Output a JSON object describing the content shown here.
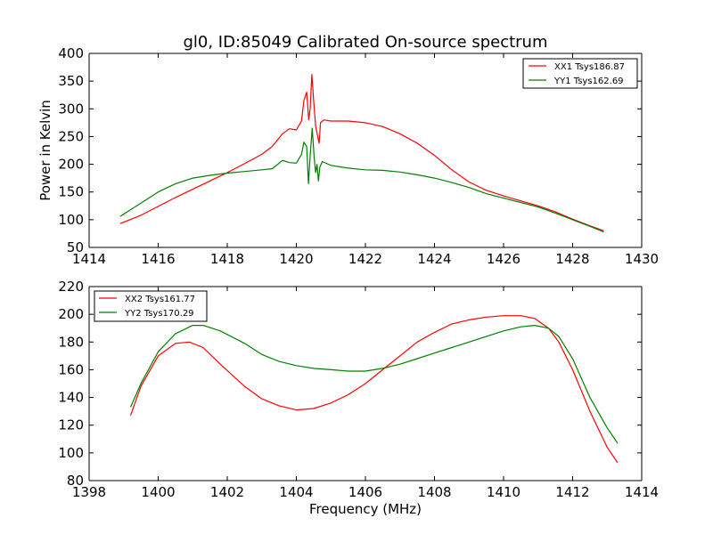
{
  "title": "gl0, ID:85049 Calibrated On-source spectrum",
  "chart_data": [
    {
      "type": "line",
      "title": "gl0, ID:85049 Calibrated On-source spectrum",
      "xlabel": "",
      "ylabel": "Power in Kelvin",
      "xlim": [
        1414,
        1430
      ],
      "ylim": [
        50,
        400
      ],
      "xticks": [
        "1414",
        "1416",
        "1418",
        "1420",
        "1422",
        "1424",
        "1426",
        "1428",
        "1430"
      ],
      "yticks": [
        "50",
        "100",
        "150",
        "200",
        "250",
        "300",
        "350",
        "400"
      ],
      "grid": false,
      "legend_position": "top-right",
      "series": [
        {
          "name": "XX1 Tsys186.87",
          "color": "#ff0000",
          "x": [
            1414.9,
            1415.5,
            1416,
            1416.5,
            1417,
            1417.5,
            1418,
            1418.5,
            1419,
            1419.3,
            1419.6,
            1419.8,
            1420.0,
            1420.15,
            1420.22,
            1420.3,
            1420.36,
            1420.4,
            1420.45,
            1420.5,
            1420.56,
            1420.62,
            1420.66,
            1420.7,
            1420.8,
            1421,
            1421.5,
            1422,
            1422.5,
            1423,
            1423.5,
            1424,
            1424.5,
            1425,
            1425.5,
            1426,
            1426.5,
            1427,
            1427.5,
            1428,
            1428.5,
            1428.9
          ],
          "y": [
            93,
            108,
            124,
            140,
            155,
            170,
            185,
            201,
            218,
            232,
            255,
            264,
            262,
            278,
            315,
            330,
            280,
            300,
            362,
            315,
            268,
            250,
            238,
            275,
            280,
            278,
            278,
            275,
            268,
            255,
            238,
            216,
            190,
            168,
            153,
            143,
            134,
            125,
            114,
            101,
            89,
            80
          ]
        },
        {
          "name": "YY1 Tsys162.69",
          "color": "#008000",
          "x": [
            1414.9,
            1415.5,
            1416,
            1416.5,
            1417,
            1417.5,
            1418,
            1418.5,
            1419,
            1419.3,
            1419.6,
            1419.8,
            1420.0,
            1420.15,
            1420.22,
            1420.3,
            1420.35,
            1420.4,
            1420.46,
            1420.52,
            1420.56,
            1420.6,
            1420.64,
            1420.68,
            1420.75,
            1421,
            1421.5,
            1422,
            1422.5,
            1423,
            1423.5,
            1424,
            1424.5,
            1425,
            1425.5,
            1426,
            1426.5,
            1427,
            1427.5,
            1428,
            1428.5,
            1428.9
          ],
          "y": [
            106,
            130,
            150,
            165,
            175,
            180,
            184,
            187,
            190,
            192,
            207,
            203,
            202,
            218,
            240,
            232,
            165,
            215,
            265,
            210,
            185,
            200,
            170,
            195,
            205,
            198,
            193,
            190,
            189,
            186,
            181,
            175,
            167,
            158,
            147,
            139,
            131,
            123,
            112,
            100,
            88,
            78
          ]
        }
      ]
    },
    {
      "type": "line",
      "title": "",
      "xlabel": "Frequency (MHz)",
      "ylabel": "",
      "xlim": [
        1398,
        1414
      ],
      "ylim": [
        80,
        220
      ],
      "xticks": [
        "1398",
        "1400",
        "1402",
        "1404",
        "1406",
        "1408",
        "1410",
        "1412",
        "1414"
      ],
      "yticks": [
        "80",
        "100",
        "120",
        "140",
        "160",
        "180",
        "200",
        "220"
      ],
      "grid": false,
      "legend_position": "top-left",
      "series": [
        {
          "name": "XX2 Tsys161.77",
          "color": "#ff0000",
          "x": [
            1399.2,
            1399.5,
            1400,
            1400.5,
            1400.9,
            1401.3,
            1401.8,
            1402.5,
            1403,
            1403.5,
            1404,
            1404.5,
            1405,
            1405.5,
            1406,
            1406.5,
            1407,
            1407.5,
            1408,
            1408.5,
            1409,
            1409.5,
            1410,
            1410.5,
            1410.9,
            1411.3,
            1411.6,
            1412,
            1412.5,
            1413,
            1413.3
          ],
          "y": [
            127,
            148,
            170,
            179,
            180,
            176,
            164,
            148,
            139,
            134,
            131,
            132,
            136,
            142,
            150,
            160,
            170,
            180,
            187,
            193,
            196,
            198,
            199,
            199,
            197,
            190,
            180,
            160,
            130,
            104,
            93
          ]
        },
        {
          "name": "YY2 Tsys170.29",
          "color": "#008000",
          "x": [
            1399.2,
            1399.5,
            1400,
            1400.5,
            1401,
            1401.3,
            1401.8,
            1402.5,
            1403,
            1403.5,
            1404,
            1404.5,
            1405,
            1405.5,
            1406,
            1406.5,
            1407,
            1407.5,
            1408,
            1408.5,
            1409,
            1409.5,
            1410,
            1410.5,
            1410.9,
            1411.3,
            1411.6,
            1412,
            1412.5,
            1413,
            1413.3
          ],
          "y": [
            133,
            150,
            173,
            186,
            192,
            192,
            188,
            179,
            171,
            166,
            163,
            161,
            160,
            159,
            159,
            161,
            164,
            168,
            172,
            176,
            180,
            184,
            188,
            191,
            192,
            190,
            184,
            168,
            140,
            118,
            107
          ]
        }
      ]
    }
  ]
}
